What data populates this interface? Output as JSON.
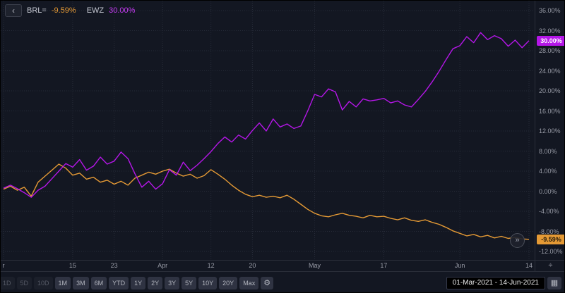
{
  "legend": {
    "series1_label": "BRL=",
    "series1_value": "-9.59%",
    "series2_label": "EWZ",
    "series2_value": "30.00%"
  },
  "icons": {
    "back": "‹",
    "more": "»",
    "target": "⌖",
    "calendar": "▦",
    "gear": "⚙"
  },
  "colors": {
    "background": "#131722",
    "grid": "#262b38",
    "axis_text": "#989ba6",
    "brl_orange": "#e59a35",
    "ewz_purple": "#b516e8"
  },
  "chart_data": {
    "type": "line",
    "title": "",
    "x_unit": "trading days from 01-Mar-2021 to 14-Jun-2021",
    "ylim": [
      -12,
      36
    ],
    "y_ticks": [
      36,
      32,
      28,
      24,
      20,
      16,
      12,
      8,
      4,
      0,
      -4,
      -8,
      -12
    ],
    "grid": true,
    "legend_position": "top-left",
    "x_ticks": [
      {
        "label": "r",
        "day": 0
      },
      {
        "label": "15",
        "day": 10
      },
      {
        "label": "23",
        "day": 16
      },
      {
        "label": "Apr",
        "day": 23
      },
      {
        "label": "12",
        "day": 30
      },
      {
        "label": "20",
        "day": 36
      },
      {
        "label": "May",
        "day": 45
      },
      {
        "label": "17",
        "day": 55
      },
      {
        "label": "Jun",
        "day": 66
      },
      {
        "label": "14",
        "day": 76
      }
    ],
    "series": [
      {
        "name": "BRL=",
        "color": "#e59a35",
        "last_value_label": "-9.59%",
        "values": [
          0.4,
          1.0,
          0.2,
          0.8,
          -1.0,
          1.8,
          3.0,
          4.2,
          5.4,
          4.6,
          3.2,
          3.6,
          2.4,
          2.8,
          1.8,
          2.2,
          1.4,
          2.0,
          1.2,
          2.6,
          3.2,
          3.8,
          3.4,
          4.0,
          4.4,
          3.6,
          3.0,
          3.4,
          2.6,
          3.1,
          4.3,
          3.4,
          2.4,
          1.2,
          0.2,
          -0.6,
          -1.1,
          -0.8,
          -1.2,
          -1.0,
          -1.3,
          -0.8,
          -1.6,
          -2.6,
          -3.6,
          -4.4,
          -4.9,
          -5.1,
          -4.7,
          -4.4,
          -4.8,
          -5.0,
          -5.3,
          -4.8,
          -5.1,
          -5.0,
          -5.4,
          -5.7,
          -5.3,
          -5.8,
          -6.0,
          -5.7,
          -6.2,
          -6.6,
          -7.2,
          -7.9,
          -8.4,
          -8.9,
          -8.6,
          -9.1,
          -8.8,
          -9.3,
          -9.0,
          -9.4,
          -9.2,
          -9.5,
          -9.59
        ]
      },
      {
        "name": "EWZ",
        "color": "#b516e8",
        "last_value_label": "30.00%",
        "values": [
          0.6,
          1.2,
          0.5,
          -0.3,
          -1.2,
          0.2,
          1.0,
          2.5,
          4.0,
          5.5,
          4.8,
          6.3,
          4.2,
          5.0,
          6.8,
          5.4,
          6.0,
          7.8,
          6.5,
          3.5,
          0.8,
          2.0,
          0.4,
          1.5,
          4.3,
          3.2,
          5.8,
          4.1,
          5.2,
          6.5,
          7.9,
          9.5,
          10.8,
          9.8,
          11.2,
          10.4,
          12.1,
          13.6,
          12.0,
          14.4,
          12.8,
          13.4,
          12.5,
          13.0,
          16.0,
          19.3,
          18.8,
          20.4,
          19.8,
          16.2,
          17.9,
          16.8,
          18.4,
          18.0,
          18.2,
          18.5,
          17.6,
          18.0,
          17.2,
          16.8,
          18.3,
          19.9,
          21.8,
          23.9,
          26.2,
          28.4,
          29.0,
          30.8,
          29.6,
          31.6,
          30.2,
          31.0,
          30.4,
          28.9,
          30.1,
          28.6,
          30.0
        ]
      }
    ]
  },
  "toolbar": {
    "timeframes": [
      {
        "label": "1D",
        "dim": true
      },
      {
        "label": "5D",
        "dim": true
      },
      {
        "label": "10D",
        "dim": true
      },
      {
        "label": "1M"
      },
      {
        "label": "3M"
      },
      {
        "label": "6M"
      },
      {
        "label": "YTD"
      },
      {
        "label": "1Y"
      },
      {
        "label": "2Y"
      },
      {
        "label": "3Y"
      },
      {
        "label": "5Y"
      },
      {
        "label": "10Y"
      },
      {
        "label": "20Y"
      },
      {
        "label": "Max"
      }
    ],
    "date_range": "01-Mar-2021 - 14-Jun-2021"
  }
}
